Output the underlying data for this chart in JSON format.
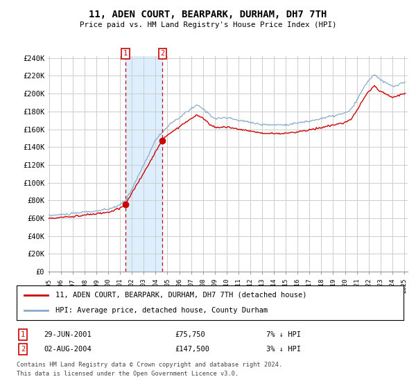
{
  "title": "11, ADEN COURT, BEARPARK, DURHAM, DH7 7TH",
  "subtitle": "Price paid vs. HM Land Registry's House Price Index (HPI)",
  "ylabel_ticks": [
    "£0",
    "£20K",
    "£40K",
    "£60K",
    "£80K",
    "£100K",
    "£120K",
    "£140K",
    "£160K",
    "£180K",
    "£200K",
    "£220K",
    "£240K"
  ],
  "ytick_values": [
    0,
    20000,
    40000,
    60000,
    80000,
    100000,
    120000,
    140000,
    160000,
    180000,
    200000,
    220000,
    240000
  ],
  "ylim": [
    0,
    250000
  ],
  "legend_line1": "11, ADEN COURT, BEARPARK, DURHAM, DH7 7TH (detached house)",
  "legend_line2": "HPI: Average price, detached house, County Durham",
  "sale1_date": "29-JUN-2001",
  "sale1_price": "£75,750",
  "sale1_hpi": "7% ↓ HPI",
  "sale2_date": "02-AUG-2004",
  "sale2_price": "£147,500",
  "sale2_hpi": "3% ↓ HPI",
  "footnote1": "Contains HM Land Registry data © Crown copyright and database right 2024.",
  "footnote2": "This data is licensed under the Open Government Licence v3.0.",
  "line_color_red": "#cc0000",
  "line_color_blue": "#88aacc",
  "bg_color": "#ffffff",
  "grid_color": "#cccccc",
  "sale_marker_color": "#cc0000",
  "dashed_line_color": "#cc0000",
  "span_color": "#ddeeff",
  "hpi_key_years": [
    1995,
    1996,
    1997,
    1998,
    1999,
    2000,
    2001,
    2001.5,
    2002,
    2003,
    2004,
    2005,
    2006,
    2007,
    2007.5,
    2008,
    2009,
    2010,
    2011,
    2012,
    2013,
    2014,
    2015,
    2016,
    2017,
    2018,
    2019,
    2020,
    2020.5,
    2021,
    2021.5,
    2022,
    2022.5,
    2023,
    2023.5,
    2024,
    2024.5,
    2025.1
  ],
  "hpi_key_vals": [
    63000,
    64000,
    65000,
    67000,
    68000,
    70000,
    75000,
    80000,
    93000,
    120000,
    148000,
    163000,
    173000,
    183000,
    187000,
    183000,
    172000,
    173000,
    170000,
    168000,
    165000,
    165000,
    165000,
    167000,
    169000,
    172000,
    175000,
    178000,
    182000,
    192000,
    205000,
    215000,
    222000,
    215000,
    212000,
    208000,
    210000,
    213000
  ],
  "sale1_year": 2001.4583,
  "sale2_year": 2004.5833,
  "sale1_price_val": 75750,
  "sale2_price_val": 147500
}
